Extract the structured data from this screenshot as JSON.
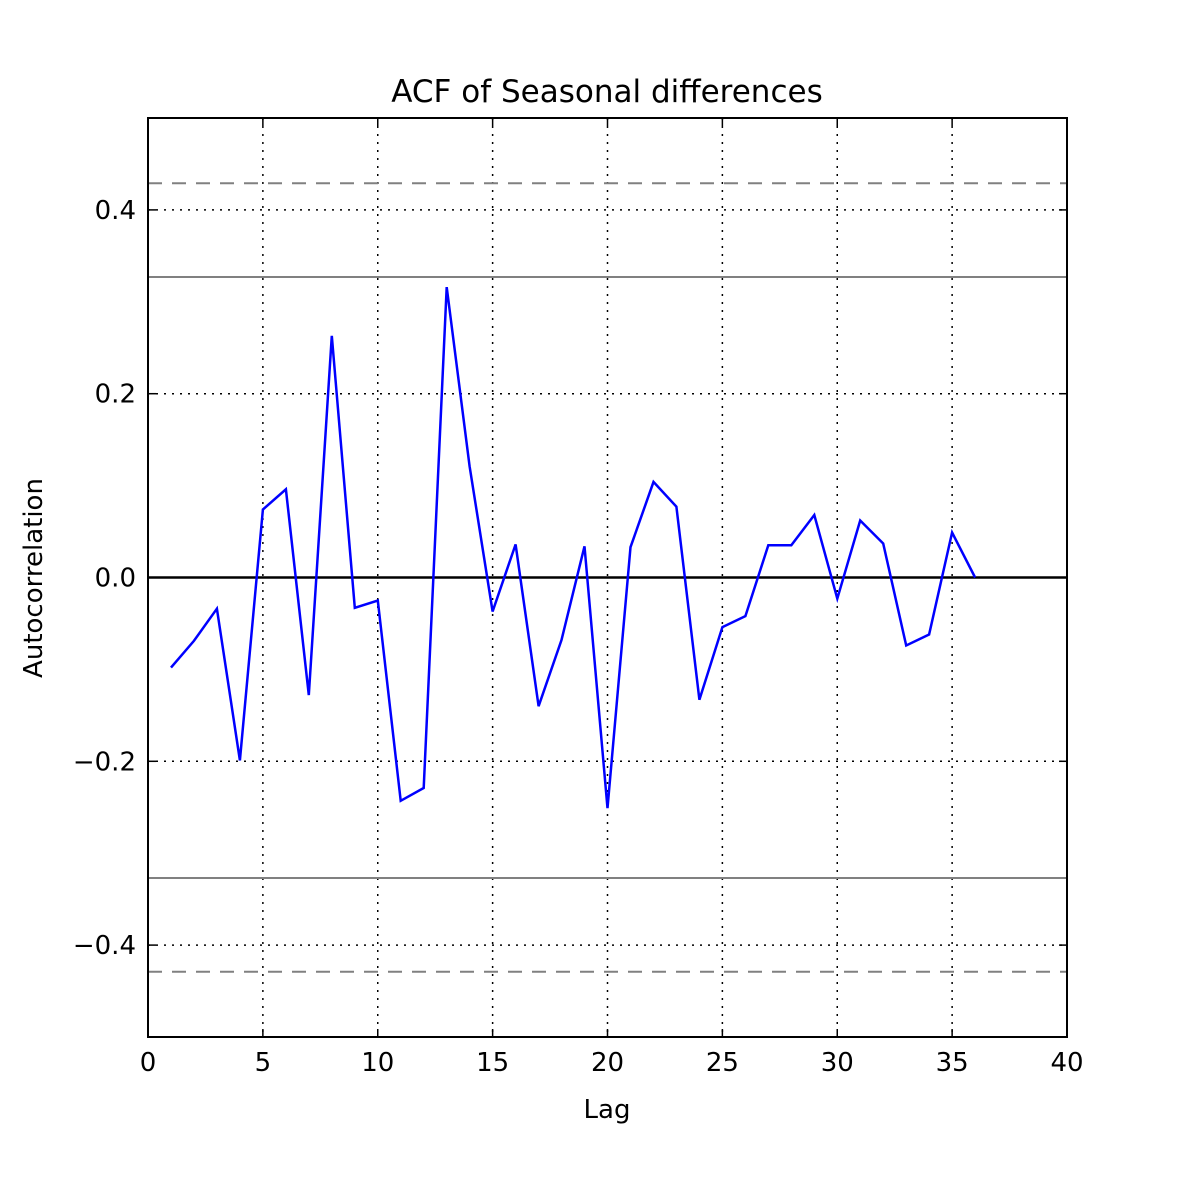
{
  "chart_data": {
    "type": "line",
    "title": "ACF of Seasonal differences",
    "xlabel": "Lag",
    "ylabel": "Autocorrelation",
    "xlim": [
      0,
      40
    ],
    "ylim": [
      -0.5,
      0.5
    ],
    "xticks": [
      0,
      5,
      10,
      15,
      20,
      25,
      30,
      35,
      40
    ],
    "x_tick_labels": [
      "0",
      "5",
      "10",
      "15",
      "20",
      "25",
      "30",
      "35",
      "40"
    ],
    "yticks": [
      -0.4,
      -0.2,
      0.0,
      0.2,
      0.4
    ],
    "y_tick_labels": [
      "−0.4",
      "−0.2",
      "0.0",
      "0.2",
      "0.4"
    ],
    "grid": true,
    "reference_lines": {
      "zero": 0.0,
      "solid_bounds": [
        0.327,
        -0.327
      ],
      "dashed_bounds": [
        0.429,
        -0.429
      ]
    },
    "series": [
      {
        "color": "#0000ff",
        "x": [
          1,
          2,
          3,
          4,
          5,
          6,
          7,
          8,
          9,
          10,
          11,
          12,
          13,
          14,
          15,
          16,
          17,
          18,
          19,
          20,
          21,
          22,
          23,
          24,
          25,
          26,
          27,
          28,
          29,
          30,
          31,
          32,
          33,
          34,
          35,
          36
        ],
        "values": [
          -0.098,
          -0.069,
          -0.034,
          -0.199,
          0.074,
          0.096,
          -0.128,
          0.263,
          -0.033,
          -0.025,
          -0.243,
          -0.229,
          0.316,
          0.121,
          -0.037,
          0.036,
          -0.14,
          -0.068,
          0.034,
          -0.251,
          0.033,
          0.104,
          0.077,
          -0.133,
          -0.054,
          -0.042,
          0.035,
          0.035,
          0.068,
          -0.023,
          0.062,
          0.037,
          -0.074,
          -0.062,
          0.049,
          0.0
        ]
      }
    ]
  }
}
